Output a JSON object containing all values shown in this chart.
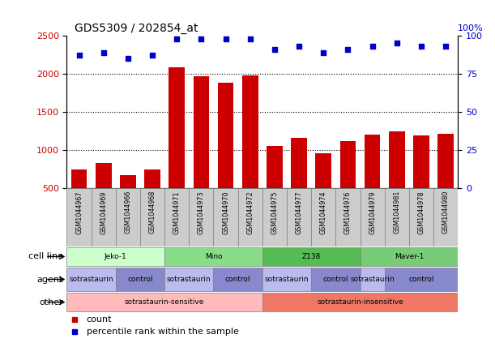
{
  "title": "GDS5309 / 202854_at",
  "samples": [
    "GSM1044967",
    "GSM1044969",
    "GSM1044966",
    "GSM1044968",
    "GSM1044971",
    "GSM1044973",
    "GSM1044970",
    "GSM1044972",
    "GSM1044975",
    "GSM1044977",
    "GSM1044974",
    "GSM1044976",
    "GSM1044979",
    "GSM1044981",
    "GSM1044978",
    "GSM1044980"
  ],
  "counts": [
    750,
    830,
    670,
    745,
    2090,
    1970,
    1880,
    1980,
    1055,
    1165,
    955,
    1120,
    1200,
    1250,
    1195,
    1215
  ],
  "percentile": [
    87,
    89,
    85,
    87,
    98,
    98,
    98,
    98,
    91,
    93,
    89,
    91,
    93,
    95,
    93,
    93
  ],
  "bar_color": "#cc0000",
  "dot_color": "#0000cc",
  "ylim_left": [
    500,
    2500
  ],
  "ylim_right": [
    0,
    100
  ],
  "yticks_left": [
    500,
    1000,
    1500,
    2000,
    2500
  ],
  "yticks_right": [
    0,
    25,
    50,
    75,
    100
  ],
  "cell_line_groups": [
    {
      "label": "Jeko-1",
      "start": 0,
      "end": 4,
      "color": "#ccffcc"
    },
    {
      "label": "Mino",
      "start": 4,
      "end": 8,
      "color": "#88dd88"
    },
    {
      "label": "Z138",
      "start": 8,
      "end": 12,
      "color": "#55bb55"
    },
    {
      "label": "Maver-1",
      "start": 12,
      "end": 16,
      "color": "#77cc77"
    }
  ],
  "agent_groups": [
    {
      "label": "sotrastaurin",
      "start": 0,
      "end": 2,
      "color": "#bbbbee"
    },
    {
      "label": "control",
      "start": 2,
      "end": 4,
      "color": "#8888cc"
    },
    {
      "label": "sotrastaurin",
      "start": 4,
      "end": 6,
      "color": "#bbbbee"
    },
    {
      "label": "control",
      "start": 6,
      "end": 8,
      "color": "#8888cc"
    },
    {
      "label": "sotrastaurin",
      "start": 8,
      "end": 10,
      "color": "#bbbbee"
    },
    {
      "label": "control",
      "start": 10,
      "end": 12,
      "color": "#8888cc"
    },
    {
      "label": "sotrastaurin",
      "start": 12,
      "end": 13,
      "color": "#bbbbee"
    },
    {
      "label": "control",
      "start": 13,
      "end": 16,
      "color": "#8888cc"
    }
  ],
  "other_groups": [
    {
      "label": "sotrastaurin-sensitive",
      "start": 0,
      "end": 8,
      "color": "#ffbbbb"
    },
    {
      "label": "sotrastaurin-insensitive",
      "start": 8,
      "end": 16,
      "color": "#ee7766"
    }
  ],
  "legend_count_label": "count",
  "legend_pct_label": "percentile rank within the sample",
  "grid_style": ":",
  "bar_width": 0.65,
  "sample_box_color": "#cccccc"
}
